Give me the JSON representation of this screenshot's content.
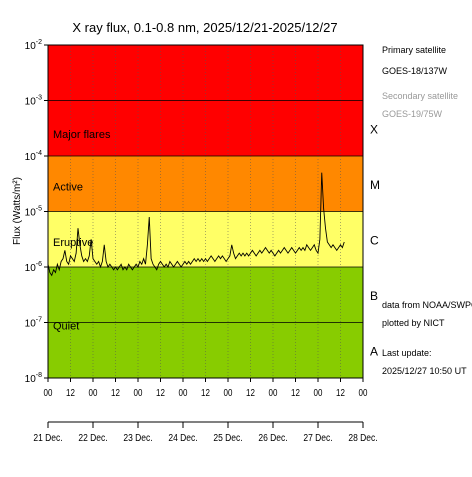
{
  "chart_data": {
    "type": "line",
    "title": "X ray flux, 0.1-0.8 nm, 2025/12/21-2025/12/27",
    "ylabel": "Flux (Watts/m²)",
    "yscale": "log",
    "ylim_exp": [
      -8,
      -2
    ],
    "y_tick_labels": [
      {
        "exp": -8,
        "base": "10",
        "sup": "-8"
      },
      {
        "exp": -7,
        "base": "10",
        "sup": "-7"
      },
      {
        "exp": -6,
        "base": "10",
        "sup": "-6"
      },
      {
        "exp": -5,
        "base": "10",
        "sup": "-5"
      },
      {
        "exp": -4,
        "base": "10",
        "sup": "-4"
      },
      {
        "exp": -3,
        "base": "10",
        "sup": "-3"
      },
      {
        "exp": -2,
        "base": "10",
        "sup": "-2"
      }
    ],
    "xlim_hours": [
      0,
      168
    ],
    "x_hour_ticks": [
      {
        "h": 0,
        "label": "00"
      },
      {
        "h": 12,
        "label": "12"
      },
      {
        "h": 24,
        "label": "00"
      },
      {
        "h": 36,
        "label": "12"
      },
      {
        "h": 48,
        "label": "00"
      },
      {
        "h": 60,
        "label": "12"
      },
      {
        "h": 72,
        "label": "00"
      },
      {
        "h": 84,
        "label": "12"
      },
      {
        "h": 96,
        "label": "00"
      },
      {
        "h": 108,
        "label": "12"
      },
      {
        "h": 120,
        "label": "00"
      },
      {
        "h": 132,
        "label": "12"
      },
      {
        "h": 144,
        "label": "00"
      },
      {
        "h": 156,
        "label": "12"
      },
      {
        "h": 168,
        "label": "00"
      }
    ],
    "x_day_labels": [
      {
        "h": 0,
        "label": "21 Dec."
      },
      {
        "h": 24,
        "label": "22 Dec."
      },
      {
        "h": 48,
        "label": "23 Dec."
      },
      {
        "h": 72,
        "label": "24 Dec."
      },
      {
        "h": 96,
        "label": "25 Dec."
      },
      {
        "h": 120,
        "label": "26 Dec."
      },
      {
        "h": 144,
        "label": "27 Dec."
      },
      {
        "h": 168,
        "label": "28 Dec."
      }
    ],
    "bands": [
      {
        "name": "Quiet",
        "from_exp": -8,
        "to_exp": -6,
        "color": "#88cc00"
      },
      {
        "name": "Eruptive",
        "from_exp": -6,
        "to_exp": -5,
        "color": "#ffff66"
      },
      {
        "name": "Active",
        "from_exp": -5,
        "to_exp": -4,
        "color": "#ff8800"
      },
      {
        "name": "Major flares",
        "from_exp": -4,
        "to_exp": -2,
        "color": "#ff0000"
      }
    ],
    "flare_classes": [
      {
        "label": "A",
        "exp": -7.5
      },
      {
        "label": "B",
        "exp": -6.5
      },
      {
        "label": "C",
        "exp": -5.5
      },
      {
        "label": "M",
        "exp": -4.5
      },
      {
        "label": "X",
        "exp": -3.5
      }
    ],
    "grid": true,
    "series": [
      {
        "name": "Primary satellite",
        "color": "#000000",
        "points": [
          [
            0,
            -5.95
          ],
          [
            1,
            -6.1
          ],
          [
            2,
            -6.15
          ],
          [
            3,
            -6.05
          ],
          [
            4,
            -6.1
          ],
          [
            5,
            -5.95
          ],
          [
            6,
            -6.05
          ],
          [
            7,
            -5.9
          ],
          [
            8,
            -5.85
          ],
          [
            9,
            -5.7
          ],
          [
            10,
            -5.9
          ],
          [
            11,
            -5.95
          ],
          [
            12,
            -5.8
          ],
          [
            13,
            -5.85
          ],
          [
            14,
            -5.9
          ],
          [
            15,
            -5.75
          ],
          [
            16,
            -5.3
          ],
          [
            17,
            -5.6
          ],
          [
            18,
            -5.8
          ],
          [
            19,
            -5.9
          ],
          [
            20,
            -5.85
          ],
          [
            21,
            -5.9
          ],
          [
            22,
            -5.8
          ],
          [
            23,
            -5.5
          ],
          [
            24,
            -5.85
          ],
          [
            25,
            -5.9
          ],
          [
            26,
            -5.95
          ],
          [
            27,
            -5.9
          ],
          [
            28,
            -6.0
          ],
          [
            29,
            -5.9
          ],
          [
            30,
            -5.6
          ],
          [
            31,
            -5.9
          ],
          [
            32,
            -6.0
          ],
          [
            33,
            -5.95
          ],
          [
            34,
            -6.0
          ],
          [
            35,
            -6.05
          ],
          [
            36,
            -6.0
          ],
          [
            37,
            -6.05
          ],
          [
            38,
            -6.0
          ],
          [
            39,
            -5.95
          ],
          [
            40,
            -6.05
          ],
          [
            41,
            -6.0
          ],
          [
            42,
            -6.05
          ],
          [
            43,
            -5.95
          ],
          [
            44,
            -6.0
          ],
          [
            45,
            -6.05
          ],
          [
            46,
            -6.0
          ],
          [
            47,
            -5.95
          ],
          [
            48,
            -6.0
          ],
          [
            49,
            -5.9
          ],
          [
            50,
            -5.95
          ],
          [
            51,
            -5.85
          ],
          [
            52,
            -5.95
          ],
          [
            53,
            -5.6
          ],
          [
            54,
            -5.1
          ],
          [
            55,
            -5.85
          ],
          [
            56,
            -5.95
          ],
          [
            57,
            -6.0
          ],
          [
            58,
            -6.05
          ],
          [
            59,
            -5.95
          ],
          [
            60,
            -5.9
          ],
          [
            61,
            -5.95
          ],
          [
            62,
            -6.0
          ],
          [
            63,
            -5.95
          ],
          [
            64,
            -6.0
          ],
          [
            65,
            -5.9
          ],
          [
            66,
            -5.95
          ],
          [
            67,
            -6.0
          ],
          [
            68,
            -5.95
          ],
          [
            69,
            -5.9
          ],
          [
            70,
            -5.95
          ],
          [
            71,
            -6.0
          ],
          [
            72,
            -5.95
          ],
          [
            73,
            -5.9
          ],
          [
            74,
            -5.95
          ],
          [
            75,
            -5.9
          ],
          [
            76,
            -5.95
          ],
          [
            77,
            -5.9
          ],
          [
            78,
            -5.85
          ],
          [
            79,
            -5.9
          ],
          [
            80,
            -5.85
          ],
          [
            81,
            -5.9
          ],
          [
            82,
            -5.85
          ],
          [
            83,
            -5.9
          ],
          [
            84,
            -5.85
          ],
          [
            85,
            -5.9
          ],
          [
            86,
            -5.85
          ],
          [
            87,
            -5.8
          ],
          [
            88,
            -5.85
          ],
          [
            89,
            -5.9
          ],
          [
            90,
            -5.85
          ],
          [
            91,
            -5.8
          ],
          [
            92,
            -5.85
          ],
          [
            93,
            -5.8
          ],
          [
            94,
            -5.85
          ],
          [
            95,
            -5.9
          ],
          [
            96,
            -5.85
          ],
          [
            97,
            -5.8
          ],
          [
            98,
            -5.6
          ],
          [
            99,
            -5.75
          ],
          [
            100,
            -5.85
          ],
          [
            101,
            -5.8
          ],
          [
            102,
            -5.75
          ],
          [
            103,
            -5.8
          ],
          [
            104,
            -5.75
          ],
          [
            105,
            -5.8
          ],
          [
            106,
            -5.75
          ],
          [
            107,
            -5.8
          ],
          [
            108,
            -5.75
          ],
          [
            109,
            -5.7
          ],
          [
            110,
            -5.75
          ],
          [
            111,
            -5.8
          ],
          [
            112,
            -5.75
          ],
          [
            113,
            -5.7
          ],
          [
            114,
            -5.75
          ],
          [
            115,
            -5.7
          ],
          [
            116,
            -5.65
          ],
          [
            117,
            -5.7
          ],
          [
            118,
            -5.75
          ],
          [
            119,
            -5.7
          ],
          [
            120,
            -5.75
          ],
          [
            121,
            -5.8
          ],
          [
            122,
            -5.75
          ],
          [
            123,
            -5.7
          ],
          [
            124,
            -5.75
          ],
          [
            125,
            -5.7
          ],
          [
            126,
            -5.65
          ],
          [
            127,
            -5.7
          ],
          [
            128,
            -5.75
          ],
          [
            129,
            -5.7
          ],
          [
            130,
            -5.65
          ],
          [
            131,
            -5.7
          ],
          [
            132,
            -5.75
          ],
          [
            133,
            -5.7
          ],
          [
            134,
            -5.65
          ],
          [
            135,
            -5.7
          ],
          [
            136,
            -5.65
          ],
          [
            137,
            -5.7
          ],
          [
            138,
            -5.6
          ],
          [
            139,
            -5.65
          ],
          [
            140,
            -5.7
          ],
          [
            141,
            -5.65
          ],
          [
            142,
            -5.6
          ],
          [
            143,
            -5.7
          ],
          [
            144,
            -5.75
          ],
          [
            145,
            -5.5
          ],
          [
            146,
            -4.3
          ],
          [
            147,
            -4.95
          ],
          [
            148,
            -5.3
          ],
          [
            149,
            -5.55
          ],
          [
            150,
            -5.6
          ],
          [
            151,
            -5.65
          ],
          [
            152,
            -5.6
          ],
          [
            153,
            -5.65
          ],
          [
            154,
            -5.7
          ],
          [
            155,
            -5.65
          ],
          [
            156,
            -5.6
          ],
          [
            157,
            -5.65
          ],
          [
            158,
            -5.55
          ]
        ]
      }
    ]
  },
  "side": {
    "primary_label": "Primary satellite",
    "primary_sat": "GOES-18/137W",
    "secondary_label": "Secondary satellite",
    "secondary_sat": "GOES-19/75W",
    "source_line1": "data from NOAA/SWPC",
    "source_line2": "plotted by NICT",
    "update_label": "Last update:",
    "update_value": "2025/12/27 10:50 UT"
  },
  "colors": {
    "primary_text": "#000000",
    "secondary_text": "#999999"
  }
}
